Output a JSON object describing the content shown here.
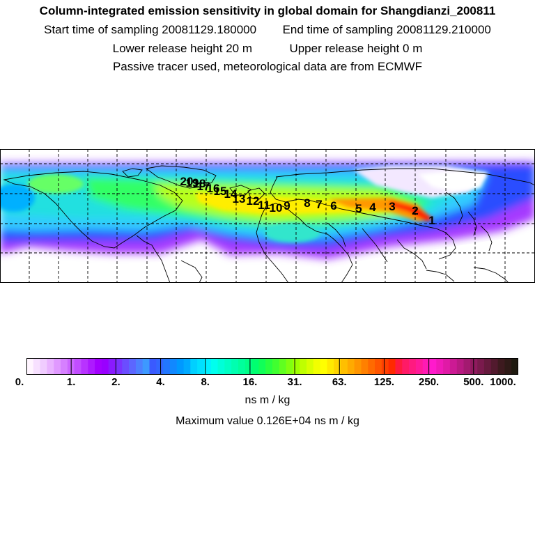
{
  "header": {
    "title": "Column-integrated emission sensitivity in global domain for Shangdianzi_200811",
    "start_label": "Start time of sampling",
    "start_value": "20081129.180000",
    "end_label": "End time of sampling",
    "end_value": "20081129.210000",
    "lower_label": "Lower release height",
    "lower_value": "20 m",
    "upper_label": "Upper release height",
    "upper_value": "0 m",
    "note": "Passive tracer used, meteorological data are from ECMWF"
  },
  "map": {
    "trajectory_labels": [
      "1",
      "2",
      "3",
      "4",
      "5",
      "6",
      "7",
      "8",
      "9",
      "10",
      "11",
      "12",
      "13",
      "14",
      "15",
      "16",
      "17",
      "18",
      "19",
      "20"
    ],
    "colors": {
      "low_purple": "#9933ff",
      "mid_blue": "#33ccff",
      "mid_green": "#33ff66",
      "high_yellow": "#ffee00",
      "peak_red": "#ff2200"
    }
  },
  "colorbar": {
    "ticks": [
      "0.",
      "1.",
      "2.",
      "4.",
      "8.",
      "16.",
      "31.",
      "63.",
      "125.",
      "250.",
      "500.",
      "1000."
    ],
    "colors": [
      "#fff5ff",
      "#f7e0ff",
      "#f0ccff",
      "#e9b3ff",
      "#e099ff",
      "#d680ff",
      "#cc66ff",
      "#c24dff",
      "#b833ff",
      "#ad1aff",
      "#a300ff",
      "#9900ff",
      "#8a1aff",
      "#7a33ff",
      "#6b4dff",
      "#5c66ff",
      "#4d80ff",
      "#3d99ff",
      "#3a5aff",
      "#3366ff",
      "#2277ff",
      "#1188ff",
      "#0099ff",
      "#00aaff",
      "#00d0ff",
      "#00e0ff",
      "#00f0ff",
      "#00ffee",
      "#00ffd8",
      "#00ffc4",
      "#00ffb0",
      "#00ff9c",
      "#00ff88",
      "#00ff70",
      "#10ff58",
      "#28ff40",
      "#40ff30",
      "#60ff20",
      "#80ff10",
      "#a0ff00",
      "#bfff00",
      "#d9ff00",
      "#f2ff00",
      "#ffff00",
      "#ffea00",
      "#ffd400",
      "#ffbf00",
      "#ffaa00",
      "#ff9500",
      "#ff8000",
      "#ff6a00",
      "#ff5500",
      "#ff3f00",
      "#ff2a00",
      "#ff1a40",
      "#ff1a66",
      "#ff1a80",
      "#ff1a99",
      "#ff1ab3",
      "#ff1acc",
      "#f01ab8",
      "#e01aa6",
      "#cc1a94",
      "#b81a82",
      "#a31a70",
      "#8f1a5e",
      "#7a1a4d",
      "#661a3d",
      "#521a2e",
      "#3d1a1f",
      "#2e1a17",
      "#1f1a10"
    ],
    "unit": "ns m / kg",
    "max_label": "Maximum value  0.126E+04 ns m / kg"
  }
}
